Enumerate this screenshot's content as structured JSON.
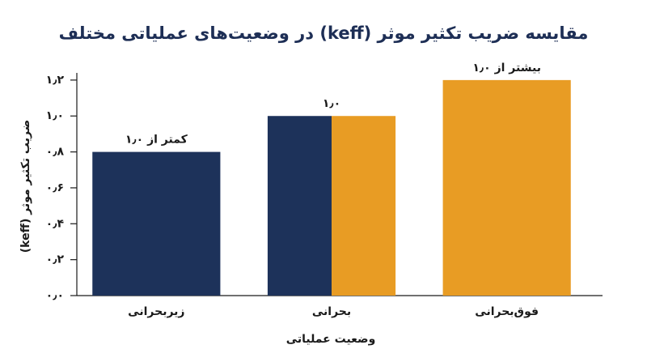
{
  "chart_data": {
    "type": "bar",
    "title": "مقایسه ضریب تکثیر موثر (keff) در وضعیت‌های عملیاتی مختلف",
    "y_label": "ضریب تکثیر موثر (keff)",
    "x_label": "وضعیت عملیاتی",
    "categories": [
      "زیربحرانی",
      "بحرانی",
      "فوق‌بحرانی"
    ],
    "values": [
      0.8,
      1.0,
      1.2
    ],
    "annotations": [
      "کمتر از ۱٫۰",
      "۱٫۰",
      "بیشتر از ۱٫۰"
    ],
    "colors": [
      [
        "#1d325a"
      ],
      [
        "#1d325a",
        "#e89c24"
      ],
      [
        "#e89c24"
      ]
    ],
    "ylim": [
      0,
      1.24
    ],
    "yticks": [
      {
        "value": 0,
        "label": "۰٫۰"
      },
      {
        "value": 0.2,
        "label": "۰٫۲"
      },
      {
        "value": 0.4,
        "label": "۰٫۴"
      },
      {
        "value": 0.6,
        "label": "۰٫۶"
      },
      {
        "value": 0.8,
        "label": "۰٫۸"
      },
      {
        "value": 1.0,
        "label": "۱٫۰"
      },
      {
        "value": 1.2,
        "label": "۱٫۲"
      }
    ],
    "grid": false
  }
}
